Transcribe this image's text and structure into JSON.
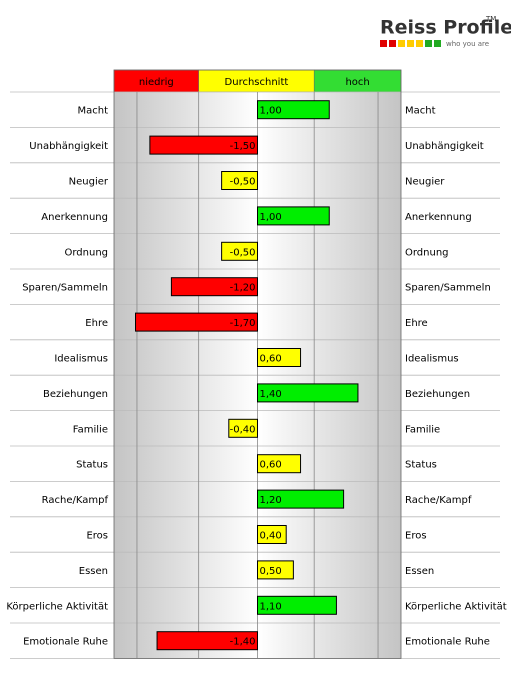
{
  "logo": {
    "title": "Reiss Profile",
    "mark": "TM",
    "tagline": "who you are"
  },
  "chart_data": {
    "type": "bar",
    "orientation": "horizontal",
    "bands": [
      {
        "name": "niedrig",
        "color": "#ff0000",
        "range": [
          -2,
          -0.82
        ]
      },
      {
        "name": "Durchschnitt",
        "color": "#ffff00",
        "range": [
          -0.82,
          0.79
        ]
      },
      {
        "name": "hoch",
        "color": "#33dd33",
        "range": [
          0.79,
          2
        ]
      }
    ],
    "categories": [
      "Macht",
      "Unabhängigkeit",
      "Neugier",
      "Anerkennung",
      "Ordnung",
      "Sparen/Sammeln",
      "Ehre",
      "Idealismus",
      "Beziehungen",
      "Familie",
      "Status",
      "Rache/Kampf",
      "Eros",
      "Essen",
      "Körperliche Aktivität",
      "Emotionale Ruhe"
    ],
    "values": [
      1.0,
      -1.5,
      -0.5,
      1.0,
      -0.5,
      -1.2,
      -1.7,
      0.6,
      1.4,
      -0.4,
      0.6,
      1.2,
      0.4,
      0.5,
      1.1,
      -1.4
    ],
    "value_labels": [
      "1,00",
      "-1,50",
      "-0,50",
      "1,00",
      "-0,50",
      "-1,20",
      "-1,70",
      "0,60",
      "1,40",
      "-0,40",
      "0,60",
      "1,20",
      "0,40",
      "0,50",
      "1,10",
      "-1,40"
    ],
    "colors": [
      "#00ee00",
      "#ff0000",
      "#ffff00",
      "#00ee00",
      "#ffff00",
      "#ff0000",
      "#ff0000",
      "#ffff00",
      "#00ee00",
      "#ffff00",
      "#ffff00",
      "#00ee00",
      "#ffff00",
      "#ffff00",
      "#00ee00",
      "#ff0000"
    ],
    "xlim": [
      -2,
      2
    ],
    "gridlines": [
      -1.68,
      -0.82,
      0,
      0.79,
      1.68
    ]
  }
}
